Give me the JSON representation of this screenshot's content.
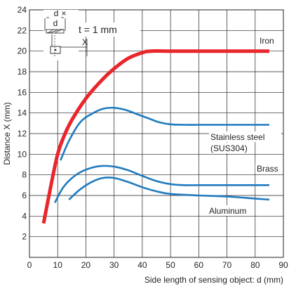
{
  "chart_data": {
    "type": "line",
    "xlabel": "Side length of sensing object: d (mm)",
    "ylabel": "Distance X (mm)",
    "xlim": [
      0,
      90
    ],
    "ylim": [
      0,
      24
    ],
    "xticks": [
      0,
      10,
      20,
      30,
      40,
      50,
      60,
      70,
      80,
      90
    ],
    "yticks": [
      2,
      4,
      6,
      8,
      10,
      12,
      14,
      16,
      18,
      20,
      22,
      24
    ],
    "grid": true,
    "inset_note": "t = 1 mm",
    "inset_labels": {
      "d_top": "d",
      "times": "×",
      "d_bottom": "d",
      "x": "X"
    },
    "colors": {
      "iron": "#e8262b",
      "other": "#1f7bbf"
    },
    "series": [
      {
        "name": "Iron",
        "color": "#e8262b",
        "x": [
          5,
          8,
          10,
          12,
          15,
          20,
          25,
          30,
          35,
          40,
          43,
          50,
          60,
          70,
          80,
          85
        ],
        "y": [
          3.3,
          7.5,
          10.0,
          11.6,
          13.3,
          15.4,
          17.0,
          18.3,
          19.3,
          19.85,
          20.0,
          20.0,
          20.0,
          20.0,
          20.0,
          20.0
        ]
      },
      {
        "name": "Stainless steel",
        "name2": "(SUS304)",
        "color": "#1f7bbf",
        "x": [
          11,
          14,
          18,
          22,
          26,
          30,
          34,
          38,
          42,
          46,
          50,
          55,
          60,
          70,
          80,
          85
        ],
        "y": [
          9.4,
          11.3,
          13.1,
          13.9,
          14.4,
          14.5,
          14.3,
          13.9,
          13.5,
          13.1,
          12.9,
          12.85,
          12.85,
          12.85,
          12.85,
          12.85
        ]
      },
      {
        "name": "Brass",
        "color": "#1f7bbf",
        "x": [
          9,
          12,
          16,
          20,
          25,
          30,
          35,
          40,
          45,
          50,
          55,
          60,
          70,
          80,
          85
        ],
        "y": [
          5.3,
          6.8,
          7.9,
          8.5,
          8.85,
          8.8,
          8.45,
          7.9,
          7.4,
          7.1,
          7.0,
          7.0,
          7.0,
          7.0,
          7.0
        ]
      },
      {
        "name": "Aluminum",
        "color": "#1f7bbf",
        "x": [
          14,
          18,
          22,
          26,
          30,
          35,
          40,
          45,
          50,
          60,
          70,
          80,
          85
        ],
        "y": [
          5.6,
          6.6,
          7.3,
          7.7,
          7.7,
          7.3,
          6.8,
          6.4,
          6.15,
          6.0,
          5.9,
          5.7,
          5.6
        ]
      }
    ]
  }
}
